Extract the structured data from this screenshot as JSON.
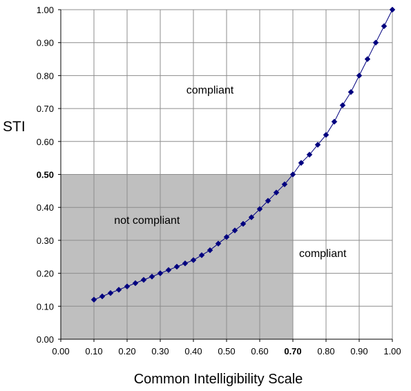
{
  "chart_data": {
    "type": "line",
    "xlabel": "Common Intelligibility Scale",
    "ylabel": "STI",
    "xlim": [
      0,
      1
    ],
    "ylim": [
      0,
      1
    ],
    "grid": true,
    "x_ticks": [
      "0.00",
      "0.10",
      "0.20",
      "0.30",
      "0.40",
      "0.50",
      "0.60",
      "0.70",
      "0.80",
      "0.90",
      "1.00"
    ],
    "y_ticks": [
      "0.00",
      "0.10",
      "0.20",
      "0.30",
      "0.40",
      "0.50",
      "0.60",
      "0.70",
      "0.80",
      "0.90",
      "1.00"
    ],
    "emphasized_x_tick": "0.70",
    "emphasized_y_tick": "0.50",
    "shaded_region": {
      "x": [
        0.0,
        0.7
      ],
      "y": [
        0.0,
        0.5
      ],
      "color": "#bfbfbf"
    },
    "annotations": [
      {
        "text": "compliant",
        "x": 0.45,
        "y": 0.745
      },
      {
        "text": "not compliant",
        "x": 0.26,
        "y": 0.35
      },
      {
        "text": "compliant",
        "x": 0.79,
        "y": 0.25
      }
    ],
    "series": [
      {
        "color": "#00007f",
        "marker": "diamond",
        "x": [
          0.1,
          0.125,
          0.15,
          0.175,
          0.2,
          0.225,
          0.25,
          0.275,
          0.3,
          0.325,
          0.35,
          0.375,
          0.4,
          0.425,
          0.45,
          0.475,
          0.5,
          0.525,
          0.55,
          0.575,
          0.6,
          0.625,
          0.65,
          0.675,
          0.7,
          0.725,
          0.75,
          0.775,
          0.8,
          0.825,
          0.85,
          0.875,
          0.9,
          0.925,
          0.95,
          0.975,
          1.0
        ],
        "y": [
          0.12,
          0.13,
          0.14,
          0.15,
          0.16,
          0.17,
          0.18,
          0.19,
          0.2,
          0.21,
          0.22,
          0.23,
          0.24,
          0.255,
          0.27,
          0.29,
          0.31,
          0.33,
          0.35,
          0.37,
          0.395,
          0.42,
          0.445,
          0.47,
          0.5,
          0.535,
          0.56,
          0.59,
          0.62,
          0.66,
          0.71,
          0.75,
          0.8,
          0.85,
          0.9,
          0.95,
          1.0
        ]
      }
    ]
  }
}
